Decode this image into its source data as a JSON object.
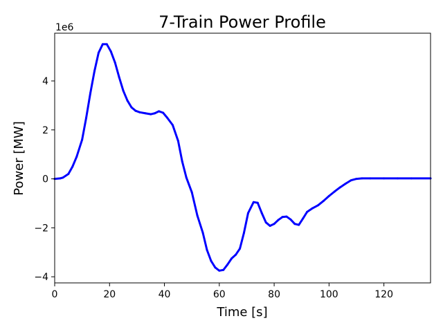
{
  "chart_data": {
    "type": "line",
    "title": "7-Train Power Profile",
    "xlabel": "Time [s]",
    "ylabel": "Power [MW]",
    "y_offset_label": "1e6",
    "y_scale": 1000000,
    "xlim": [
      0,
      137
    ],
    "ylim": [
      -4.25,
      5.95
    ],
    "x_ticks": [
      0,
      20,
      40,
      60,
      80,
      100,
      120
    ],
    "x_tick_labels": [
      "0",
      "20",
      "40",
      "60",
      "80",
      "100",
      "120"
    ],
    "y_ticks": [
      -4,
      -2,
      0,
      2,
      4
    ],
    "y_tick_labels": [
      "−4",
      "−2",
      "0",
      "2",
      "4"
    ],
    "grid": false,
    "series": [
      {
        "color": "#0000ff",
        "x": [
          0,
          2,
          3,
          5,
          6.5,
          8,
          10,
          11.5,
          13,
          14.5,
          16,
          17.5,
          19,
          20.5,
          22,
          23.5,
          25,
          26.5,
          28,
          29.5,
          31,
          33,
          35,
          36.5,
          38,
          39.5,
          41,
          43,
          45,
          46.5,
          48,
          50,
          52,
          54,
          55.5,
          57,
          58.5,
          60,
          61.5,
          63,
          64.5,
          66,
          67.5,
          69,
          70.5,
          72.5,
          74,
          75.5,
          77,
          78.5,
          80,
          81.5,
          83,
          84.5,
          86,
          87.5,
          89,
          90.5,
          92,
          94,
          96,
          98,
          100,
          102,
          104,
          106,
          108,
          110,
          112,
          115,
          120,
          125,
          130,
          137
        ],
        "y": [
          0,
          0.02,
          0.05,
          0.2,
          0.5,
          0.9,
          1.6,
          2.5,
          3.5,
          4.4,
          5.15,
          5.5,
          5.5,
          5.2,
          4.75,
          4.15,
          3.6,
          3.2,
          2.92,
          2.78,
          2.72,
          2.68,
          2.64,
          2.68,
          2.76,
          2.7,
          2.5,
          2.2,
          1.55,
          0.7,
          0.05,
          -0.55,
          -1.5,
          -2.2,
          -2.9,
          -3.35,
          -3.62,
          -3.75,
          -3.72,
          -3.5,
          -3.25,
          -3.1,
          -2.85,
          -2.2,
          -1.4,
          -0.95,
          -0.98,
          -1.4,
          -1.78,
          -1.92,
          -1.84,
          -1.68,
          -1.56,
          -1.54,
          -1.66,
          -1.84,
          -1.88,
          -1.62,
          -1.35,
          -1.2,
          -1.08,
          -0.9,
          -0.7,
          -0.52,
          -0.35,
          -0.2,
          -0.06,
          0,
          0.02,
          0.02,
          0.02,
          0.02,
          0.02,
          0.02
        ]
      }
    ]
  }
}
